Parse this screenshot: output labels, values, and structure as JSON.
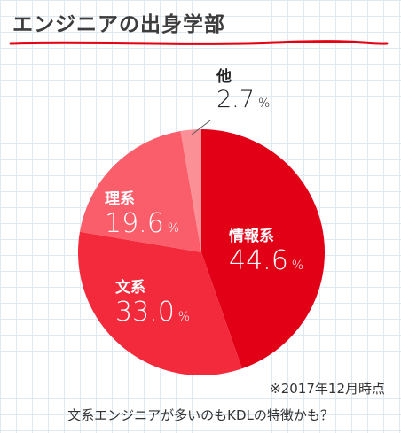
{
  "title": "エンジニアの出身学部",
  "chart_data": {
    "type": "pie",
    "unit": "%",
    "slices": [
      {
        "label": "情報系",
        "value": 44.6,
        "color": "#e20016"
      },
      {
        "label": "文系",
        "value": 33.0,
        "color": "#f32a3b"
      },
      {
        "label": "理系",
        "value": 19.6,
        "color": "#fa5e6a"
      },
      {
        "label": "他",
        "value": 2.7,
        "color": "#fb9097"
      }
    ]
  },
  "labels": [
    {
      "name": "情報系",
      "value": "44.6",
      "unit": "%"
    },
    {
      "name": "文系",
      "value": "33.0",
      "unit": "%"
    },
    {
      "name": "理系",
      "value": "19.6",
      "unit": "%"
    },
    {
      "name": "他",
      "value": "2.7",
      "unit": "%"
    }
  ],
  "note": "※2017年12月時点",
  "caption": "文系エンジニアが多いのもKDLの特徴かも？",
  "accent_color": "#e60012"
}
